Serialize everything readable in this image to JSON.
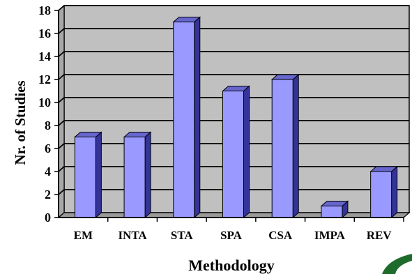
{
  "chart_data": {
    "type": "bar",
    "title": "",
    "xlabel": "Methodology",
    "ylabel": "Nr. of Studies",
    "categories": [
      "EM",
      "INTA",
      "STA",
      "SPA",
      "CSA",
      "IMPA",
      "REV"
    ],
    "values": [
      7,
      7,
      17,
      11,
      12,
      1,
      4
    ],
    "ylim": [
      0,
      18
    ],
    "yticks": [
      "0",
      "2",
      "4",
      "6",
      "8",
      "10",
      "12",
      "14",
      "16",
      "18"
    ],
    "grid": true,
    "style": "3d-column"
  },
  "colors": {
    "plot_wall": "#c0c0c0",
    "bar_front": "#9999ff",
    "bar_side": "#333399",
    "bar_top": "#6666cc",
    "logo_accent": "#1e6b2c"
  },
  "decor": {
    "logo_icon": "green-arc-logo-icon"
  }
}
